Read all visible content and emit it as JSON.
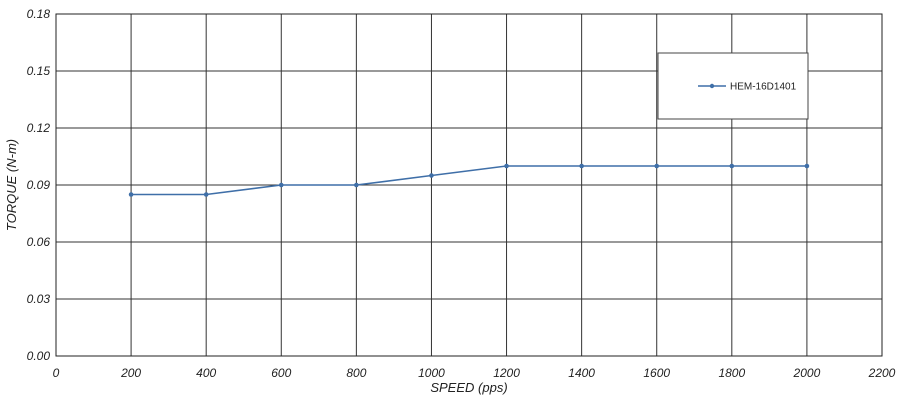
{
  "chart_data": {
    "type": "line",
    "xlabel": "SPEED (pps)",
    "ylabel": "TORQUE (N-m)",
    "xlim": [
      0,
      2200
    ],
    "ylim": [
      0,
      0.18
    ],
    "x_ticks": [
      "0",
      "200",
      "400",
      "600",
      "800",
      "1000",
      "1200",
      "1400",
      "1600",
      "1800",
      "2000",
      "2200"
    ],
    "y_ticks": [
      "0.00",
      "0.03",
      "0.06",
      "0.09",
      "0.12",
      "0.15",
      "0.18"
    ],
    "grid": true,
    "legend_position": "top-right",
    "series": [
      {
        "name": "HEM-16D1401",
        "color": "#3f6fa8",
        "x": [
          200,
          400,
          600,
          800,
          1000,
          1200,
          1400,
          1600,
          1800,
          2000
        ],
        "y": [
          0.085,
          0.085,
          0.09,
          0.09,
          0.095,
          0.1,
          0.1,
          0.1,
          0.1,
          0.1
        ]
      }
    ]
  }
}
